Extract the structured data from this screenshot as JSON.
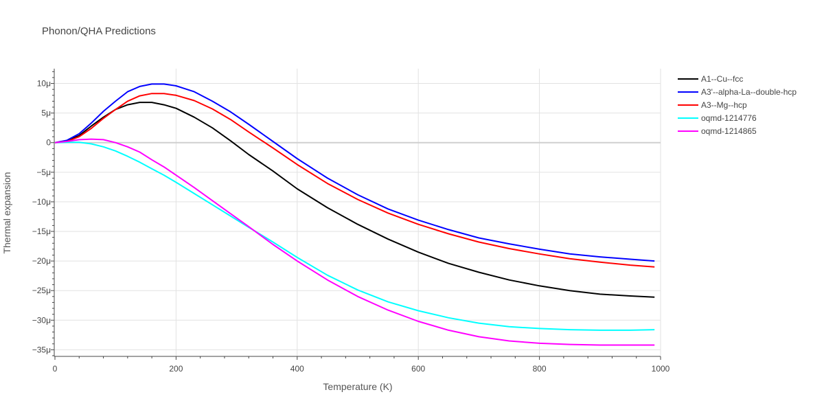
{
  "chart_data": {
    "type": "line",
    "title": "Phonon/QHA Predictions",
    "xlabel": "Temperature (K)",
    "ylabel": "Thermal expansion",
    "xlim": [
      0,
      1000
    ],
    "ylim": [
      -36,
      12.5
    ],
    "grid": true,
    "legend_position": "right",
    "x_ticks": [
      0,
      200,
      400,
      600,
      800,
      1000
    ],
    "x_tick_labels": [
      "0",
      "200",
      "400",
      "600",
      "800",
      "1000"
    ],
    "y_ticks": [
      10,
      5,
      0,
      -5,
      -10,
      -15,
      -20,
      -25,
      -30,
      -35
    ],
    "y_tick_labels": [
      "10μ",
      "5μ",
      "0",
      "−5μ",
      "−10μ",
      "−15μ",
      "−20μ",
      "−25μ",
      "−30μ",
      "−35μ"
    ],
    "y_unit_scale": "1e-6",
    "series": [
      {
        "name": "A1--Cu--fcc",
        "color": "#000000",
        "x": [
          0,
          20,
          40,
          60,
          80,
          100,
          120,
          140,
          160,
          180,
          200,
          230,
          260,
          290,
          320,
          360,
          400,
          450,
          500,
          550,
          600,
          650,
          700,
          750,
          800,
          850,
          900,
          950,
          990
        ],
        "y": [
          0,
          0.3,
          1.2,
          2.8,
          4.3,
          5.6,
          6.4,
          6.8,
          6.8,
          6.4,
          5.8,
          4.3,
          2.5,
          0.3,
          -2.0,
          -4.8,
          -7.8,
          -11.0,
          -13.8,
          -16.3,
          -18.5,
          -20.4,
          -21.9,
          -23.2,
          -24.2,
          -25.0,
          -25.6,
          -25.9,
          -26.1
        ]
      },
      {
        "name": "A3'--alpha-La--double-hcp",
        "color": "#0000ff",
        "x": [
          0,
          20,
          40,
          60,
          80,
          100,
          120,
          140,
          160,
          180,
          200,
          230,
          260,
          290,
          320,
          360,
          400,
          450,
          500,
          550,
          600,
          650,
          700,
          750,
          800,
          850,
          900,
          950,
          990
        ],
        "y": [
          0,
          0.4,
          1.5,
          3.3,
          5.3,
          7.0,
          8.6,
          9.5,
          9.9,
          9.9,
          9.6,
          8.6,
          7.0,
          5.2,
          3.1,
          0.2,
          -2.7,
          -6.0,
          -8.8,
          -11.2,
          -13.1,
          -14.7,
          -16.1,
          -17.1,
          -18.0,
          -18.8,
          -19.3,
          -19.7,
          -20.0
        ]
      },
      {
        "name": "A3--Mg--hcp",
        "color": "#ff0000",
        "x": [
          0,
          20,
          40,
          60,
          80,
          100,
          120,
          140,
          160,
          180,
          200,
          230,
          260,
          290,
          320,
          360,
          400,
          450,
          500,
          550,
          600,
          650,
          700,
          750,
          800,
          850,
          900,
          950,
          990
        ],
        "y": [
          0,
          0.2,
          1.0,
          2.4,
          4.1,
          5.6,
          7.0,
          7.9,
          8.3,
          8.3,
          8.0,
          7.1,
          5.7,
          3.9,
          1.8,
          -0.9,
          -3.7,
          -6.9,
          -9.6,
          -11.9,
          -13.8,
          -15.4,
          -16.8,
          -17.9,
          -18.8,
          -19.6,
          -20.2,
          -20.7,
          -21.0
        ]
      },
      {
        "name": "oqmd-1214776",
        "color": "#00ffff",
        "x": [
          0,
          20,
          40,
          60,
          80,
          100,
          120,
          140,
          160,
          180,
          200,
          230,
          260,
          290,
          320,
          360,
          400,
          450,
          500,
          550,
          600,
          650,
          700,
          750,
          800,
          850,
          900,
          950,
          990
        ],
        "y": [
          0,
          0.05,
          0.05,
          -0.2,
          -0.7,
          -1.4,
          -2.3,
          -3.3,
          -4.4,
          -5.5,
          -6.7,
          -8.6,
          -10.5,
          -12.4,
          -14.3,
          -16.8,
          -19.4,
          -22.4,
          -24.9,
          -26.9,
          -28.4,
          -29.6,
          -30.5,
          -31.1,
          -31.4,
          -31.6,
          -31.7,
          -31.7,
          -31.6
        ]
      },
      {
        "name": "oqmd-1214865",
        "color": "#ff00ff",
        "x": [
          0,
          20,
          40,
          60,
          80,
          100,
          120,
          140,
          160,
          180,
          200,
          230,
          260,
          290,
          320,
          360,
          400,
          450,
          500,
          550,
          600,
          650,
          700,
          750,
          800,
          850,
          900,
          950,
          990
        ],
        "y": [
          0,
          0.2,
          0.5,
          0.6,
          0.5,
          0.0,
          -0.7,
          -1.6,
          -2.9,
          -4.1,
          -5.5,
          -7.6,
          -9.8,
          -12.0,
          -14.2,
          -17.2,
          -20.0,
          -23.2,
          -26.0,
          -28.3,
          -30.2,
          -31.7,
          -32.8,
          -33.5,
          -33.9,
          -34.1,
          -34.2,
          -34.2,
          -34.2
        ]
      }
    ]
  }
}
